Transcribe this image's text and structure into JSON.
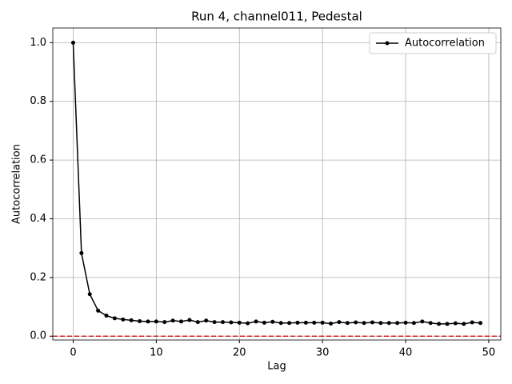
{
  "chart_data": {
    "type": "line",
    "title": "Run 4, channel011, Pedestal",
    "xlabel": "Lag",
    "ylabel": "Autocorrelation",
    "x": [
      0,
      1,
      2,
      3,
      4,
      5,
      6,
      7,
      8,
      9,
      10,
      11,
      12,
      13,
      14,
      15,
      16,
      17,
      18,
      19,
      20,
      21,
      22,
      23,
      24,
      25,
      26,
      27,
      28,
      29,
      30,
      31,
      32,
      33,
      34,
      35,
      36,
      37,
      38,
      39,
      40,
      41,
      42,
      43,
      44,
      45,
      46,
      47,
      48,
      49
    ],
    "series": [
      {
        "name": "Autocorrelation",
        "color": "#000000",
        "values": [
          1.0,
          0.283,
          0.143,
          0.087,
          0.07,
          0.061,
          0.057,
          0.054,
          0.051,
          0.05,
          0.05,
          0.048,
          0.053,
          0.05,
          0.055,
          0.048,
          0.053,
          0.048,
          0.048,
          0.047,
          0.046,
          0.044,
          0.05,
          0.046,
          0.049,
          0.045,
          0.045,
          0.046,
          0.046,
          0.046,
          0.046,
          0.043,
          0.048,
          0.045,
          0.047,
          0.045,
          0.047,
          0.045,
          0.045,
          0.045,
          0.046,
          0.045,
          0.05,
          0.045,
          0.042,
          0.042,
          0.044,
          0.042,
          0.047,
          0.045
        ]
      }
    ],
    "reference_line": {
      "y": 0,
      "color": "#d62728",
      "style": "dashed"
    },
    "xlim": [
      -2.45,
      51.45
    ],
    "xticks": [
      0,
      10,
      20,
      30,
      40,
      50
    ],
    "ylim": [
      -0.013,
      1.05
    ],
    "yticks": [
      {
        "value": 0,
        "label": "0.0"
      },
      0.2,
      0.4,
      0.6,
      0.8,
      {
        "value": 1,
        "label": "1.0"
      }
    ],
    "grid": true,
    "legend": "upper right"
  }
}
